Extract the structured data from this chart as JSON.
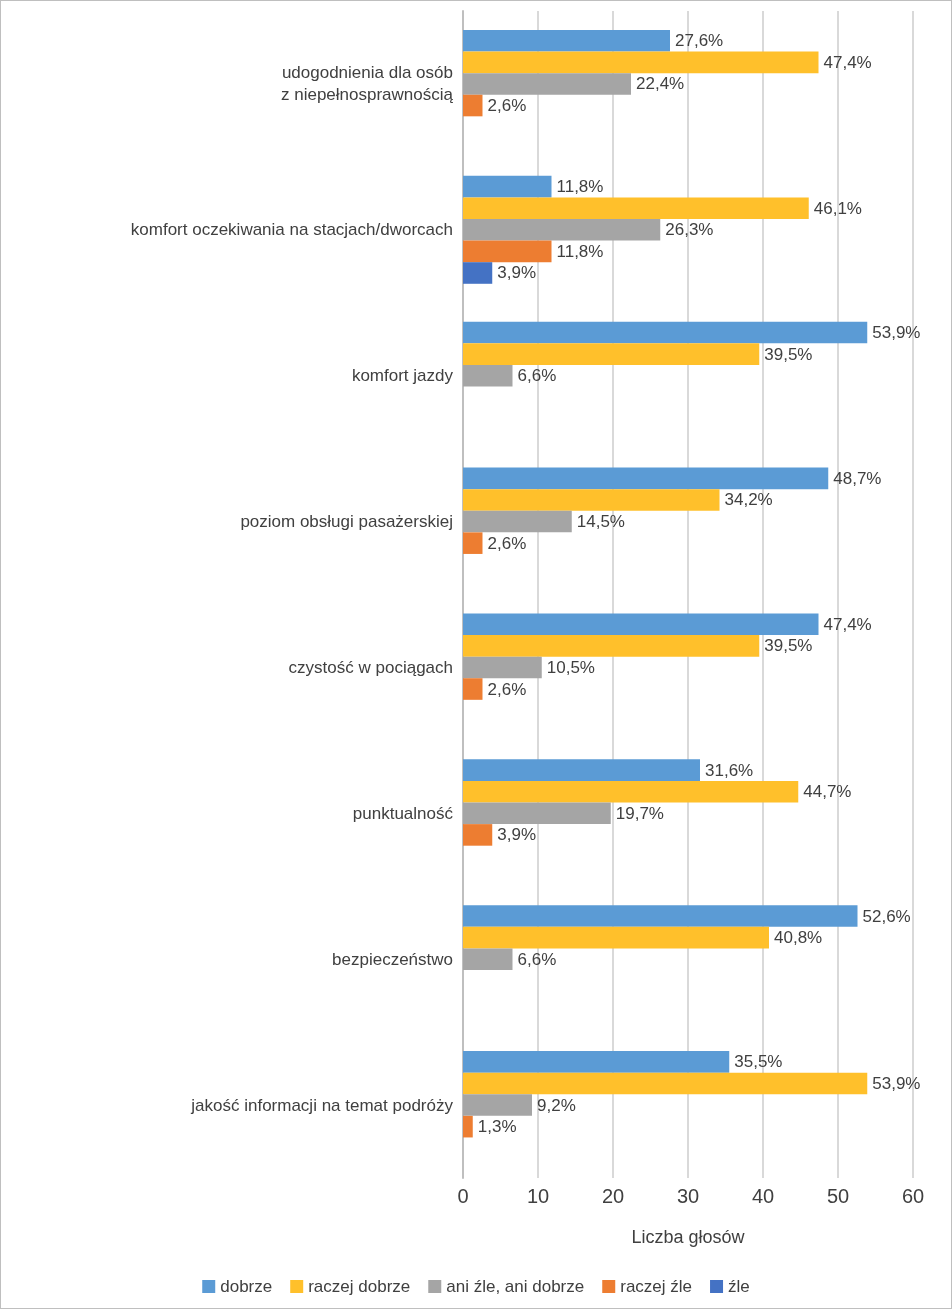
{
  "chart_data": {
    "type": "bar",
    "orientation": "horizontal",
    "xlabel": "Liczba głosów",
    "categories": [
      "udogodnienia dla osób\nz niepełnosprawnością",
      "komfort oczekiwania na stacjach/dworcach",
      "komfort jazdy",
      "poziom obsługi pasażerskiej",
      "czystość w pociągach",
      "punktualność",
      "bezpieczeństwo",
      "jakość informacji na temat podróży"
    ],
    "series": [
      {
        "name": "dobrze",
        "color": "#5b9bd5",
        "values": [
          27.6,
          11.8,
          53.9,
          48.7,
          47.4,
          31.6,
          52.6,
          35.5
        ],
        "value_labels": [
          "27,6%",
          "11,8%",
          "53,9%",
          "48,7%",
          "47,4%",
          "31,6%",
          "52,6%",
          "35,5%"
        ]
      },
      {
        "name": "raczej dobrze",
        "color": "#ffc02b",
        "values": [
          47.4,
          46.1,
          39.5,
          34.2,
          39.5,
          44.7,
          40.8,
          53.9
        ],
        "value_labels": [
          "47,4%",
          "46,1%",
          "39,5%",
          "34,2%",
          "39,5%",
          "44,7%",
          "40,8%",
          "53,9%"
        ]
      },
      {
        "name": "ani źle, ani dobrze",
        "color": "#a5a5a5",
        "values": [
          22.4,
          26.3,
          6.6,
          14.5,
          10.5,
          19.7,
          6.6,
          9.2
        ],
        "value_labels": [
          "22,4%",
          "26,3%",
          "6,6%",
          "14,5%",
          "10,5%",
          "19,7%",
          "6,6%",
          "9,2%"
        ]
      },
      {
        "name": "raczej źle",
        "color": "#ed7d31",
        "values": [
          2.6,
          11.8,
          null,
          2.6,
          2.6,
          3.9,
          null,
          1.3
        ],
        "value_labels": [
          "2,6%",
          "11,8%",
          null,
          "2,6%",
          "2,6%",
          "3,9%",
          null,
          "1,3%"
        ]
      },
      {
        "name": "źle",
        "color": "#4472c4",
        "values": [
          null,
          3.9,
          null,
          null,
          null,
          null,
          null,
          null
        ],
        "value_labels": [
          null,
          "3,9%",
          null,
          null,
          null,
          null,
          null,
          null
        ]
      }
    ],
    "xlim": [
      0,
      60
    ],
    "xticks": [
      0,
      10,
      20,
      30,
      40,
      50,
      60
    ],
    "grid": "x",
    "legend": "bottom"
  }
}
